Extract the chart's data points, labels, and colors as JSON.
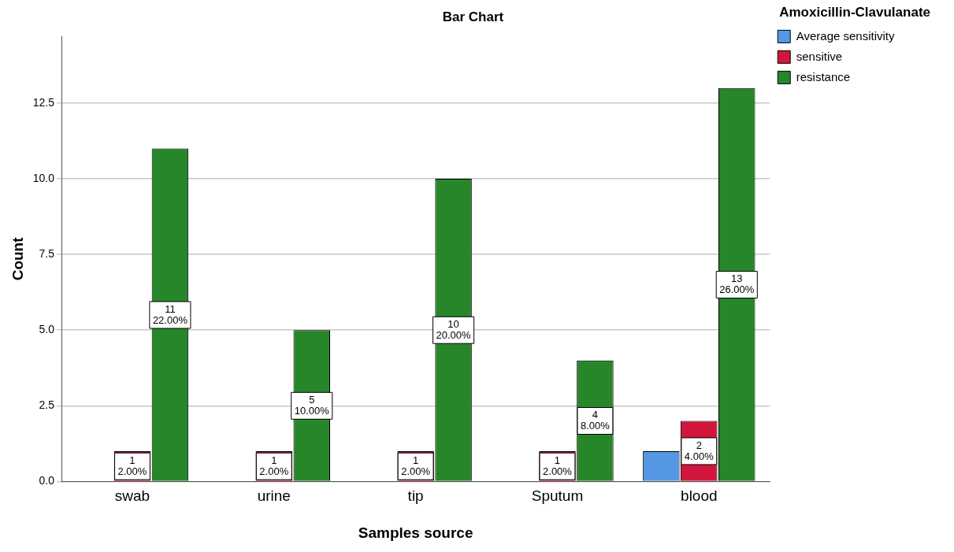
{
  "chart_data": {
    "type": "bar",
    "title": "Bar Chart",
    "xlabel": "Samples source",
    "ylabel": "Count",
    "legend_title": "Amoxicillin-Clavulanate",
    "legend": "top right",
    "grid": "y",
    "categories": [
      "swab",
      "urine",
      "tip",
      "Sputum",
      "blood"
    ],
    "series": [
      {
        "name": "Average sensitivity",
        "color": "#5497e3",
        "values": [
          null,
          null,
          null,
          null,
          1
        ],
        "value_labels": [
          null,
          null,
          null,
          null,
          null
        ]
      },
      {
        "name": "sensitive",
        "color": "#d3163e",
        "values": [
          1,
          1,
          1,
          1,
          2
        ],
        "value_labels": [
          "1\n2.00%",
          "1\n2.00%",
          "1\n2.00%",
          "1\n2.00%",
          "2\n4.00%"
        ]
      },
      {
        "name": "resistance",
        "color": "#28862a",
        "values": [
          11,
          5,
          10,
          4,
          13
        ],
        "value_labels": [
          "11\n22.00%",
          "5\n10.00%",
          "10\n20.00%",
          "4\n8.00%",
          "13\n26.00%"
        ]
      }
    ],
    "ylim": [
      0,
      14.7
    ],
    "yticks": [
      {
        "value": 0,
        "label": "0.0"
      },
      {
        "value": 2.5,
        "label": "2.5"
      },
      {
        "value": 5,
        "label": "5.0"
      },
      {
        "value": 7.5,
        "label": "7.5"
      },
      {
        "value": 10,
        "label": "10.0"
      },
      {
        "value": 12.5,
        "label": "12.5"
      }
    ]
  }
}
